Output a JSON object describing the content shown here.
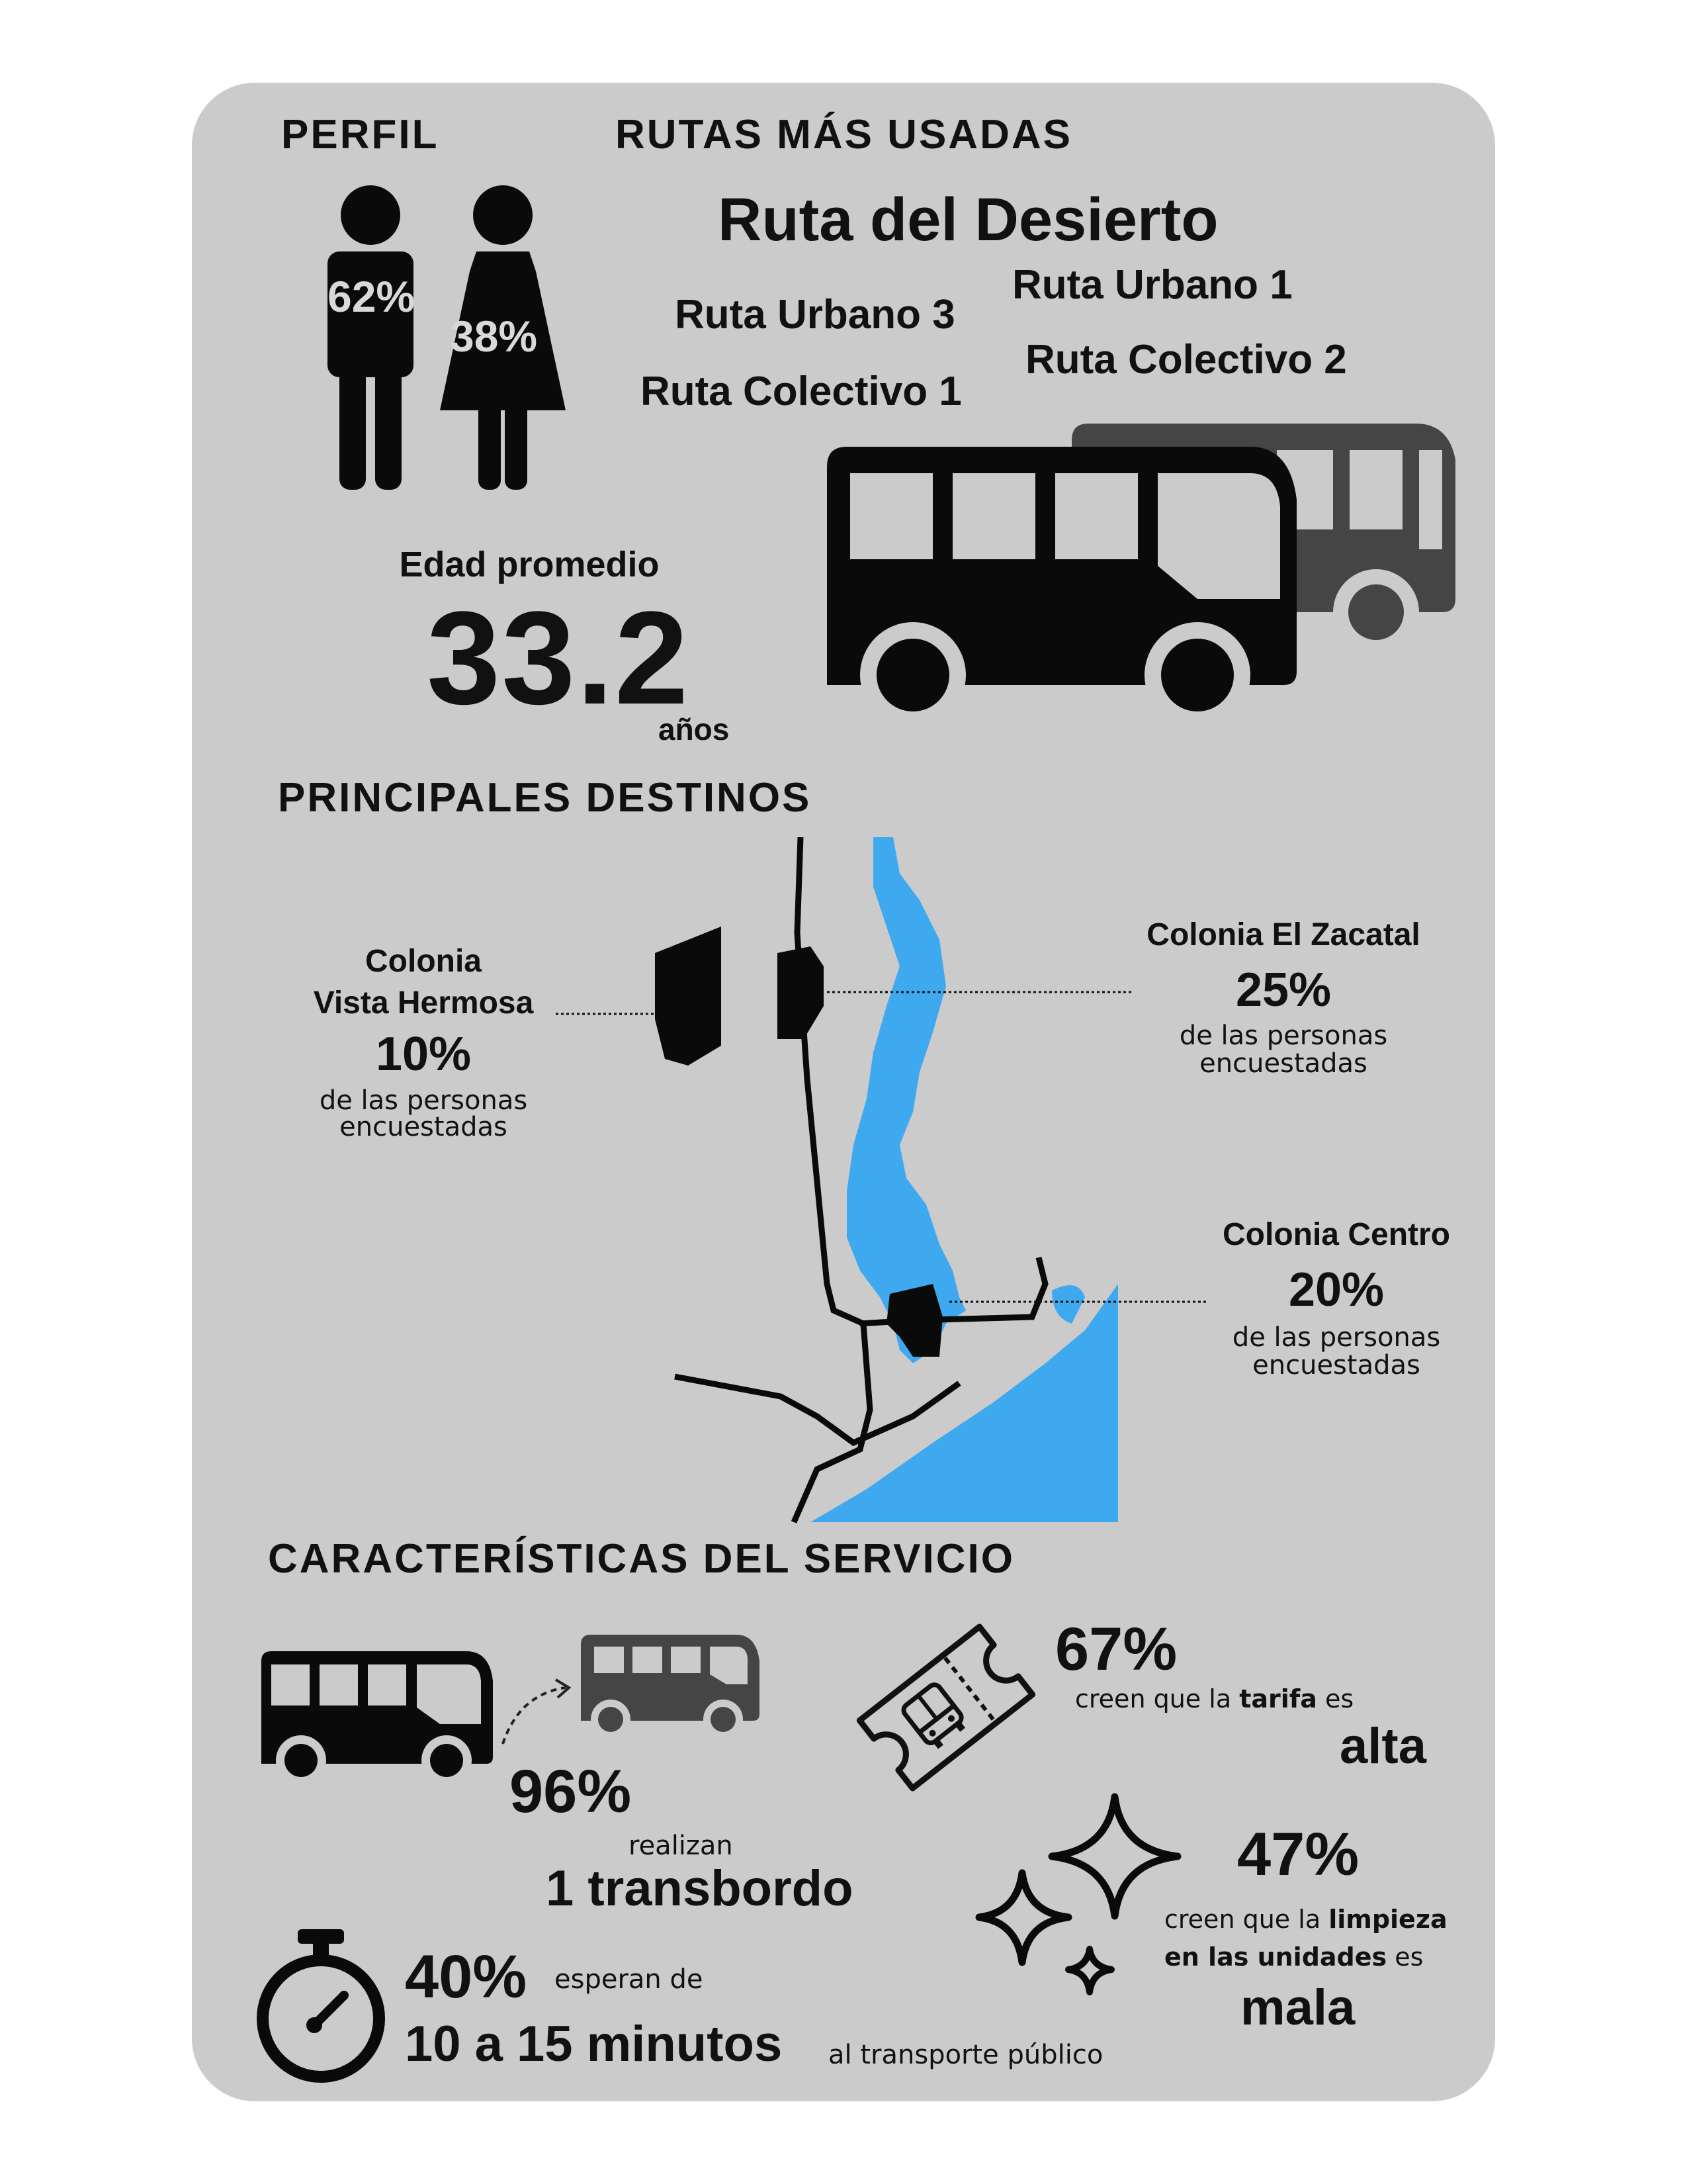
{
  "perfil": {
    "title": "PERFIL",
    "male_pct": "62%",
    "female_pct": "38%",
    "age_label": "Edad promedio",
    "age_value": "33.2",
    "age_unit": "años"
  },
  "rutas": {
    "title": "RUTAS MÁS USADAS",
    "top": "Ruta del Desierto",
    "r2": "Ruta Urbano 1",
    "r3": "Ruta Urbano 3",
    "r4": "Ruta Colectivo 2",
    "r5": "Ruta Colectivo 1"
  },
  "destinos": {
    "title": "PRINCIPALES DESTINOS",
    "vista": {
      "name_1": "Colonia",
      "name_2": "Vista Hermosa",
      "pct": "10%",
      "sub_1": "de las personas",
      "sub_2": "encuestadas"
    },
    "zacatal": {
      "name": "Colonia El Zacatal",
      "pct": "25%",
      "sub_1": "de las personas",
      "sub_2": "encuestadas"
    },
    "centro": {
      "name": "Colonia Centro",
      "pct": "20%",
      "sub_1": "de las personas",
      "sub_2": "encuestadas"
    },
    "water_color": "#3fa9ef"
  },
  "servicio": {
    "title": "CARACTERÍSTICAS DEL SERVICIO",
    "transbordo": {
      "pct": "96%",
      "label": "realizan",
      "value": "1 transbordo"
    },
    "espera": {
      "pct": "40%",
      "label": "esperan de",
      "value": "10 a 15 minutos",
      "suffix": "al transporte público"
    },
    "tarifa": {
      "pct": "67%",
      "pre": "creen que la ",
      "keyword": "tarifa",
      "post": " es",
      "value": "alta"
    },
    "limpieza": {
      "pct": "47%",
      "pre": "creen que la ",
      "keyword_1": "limpieza",
      "keyword_2": "en las unidades",
      "post": " es",
      "value": "mala"
    }
  }
}
